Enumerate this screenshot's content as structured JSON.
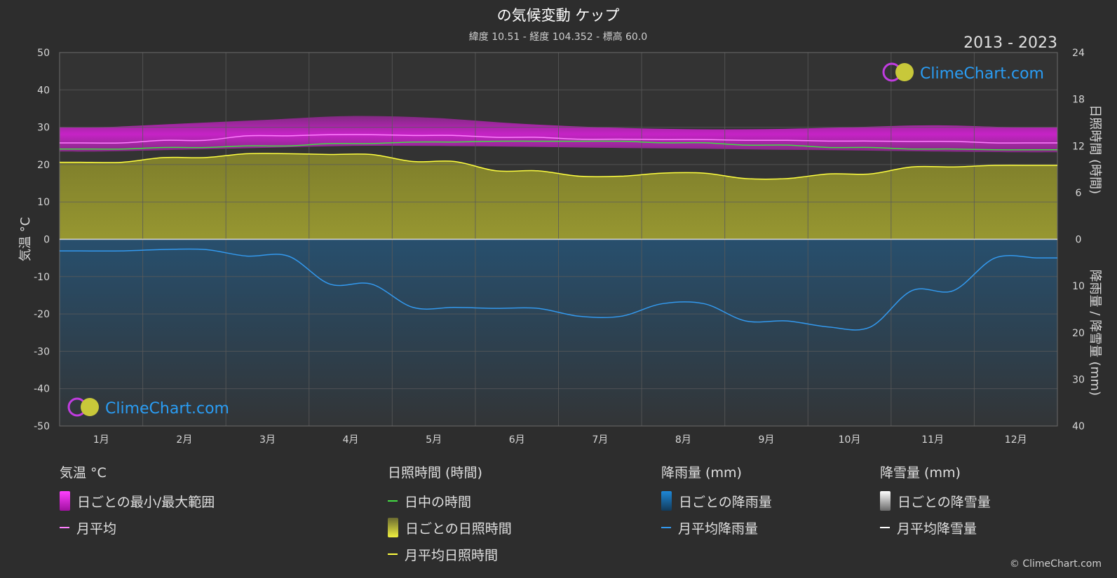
{
  "header": {
    "title": "の気候変動 ケップ",
    "subtitle": "緯度 10.51 - 経度 104.352 - 標高 60.0",
    "period": "2013 - 2023"
  },
  "watermark": {
    "text": "ClimeChart.com"
  },
  "copyright": "© ClimeChart.com",
  "colors": {
    "background": "#2d2d2d",
    "temp_range": "#e020e0",
    "temp_mean": "#ff80ff",
    "daylight": "#44dd44",
    "sunshine_fill": "#a8a830",
    "sunshine_mean": "#ffff40",
    "rain_fill": "#1a6fb0",
    "rain_mean": "#3399ee",
    "snow_mean": "#ffffff",
    "brand_blue": "#2a9df4"
  },
  "chart_data": {
    "type": "line",
    "categories": [
      "1月",
      "2月",
      "3月",
      "4月",
      "5月",
      "6月",
      "7月",
      "8月",
      "9月",
      "10月",
      "11月",
      "12月"
    ],
    "axes": {
      "left": {
        "label": "気温 °C",
        "range": [
          -50,
          50
        ],
        "ticks": [
          50,
          40,
          30,
          20,
          10,
          0,
          -10,
          -20,
          -30,
          -40,
          -50
        ]
      },
      "right_top": {
        "label": "日照時間 (時間)",
        "range": [
          0,
          24
        ],
        "ticks": [
          24,
          18,
          12,
          6,
          0
        ]
      },
      "right_bottom": {
        "label": "降雨量 / 降雪量 (mm)",
        "range": [
          0,
          40
        ],
        "ticks": [
          0,
          10,
          20,
          30,
          40
        ]
      }
    },
    "grid": true,
    "series": [
      {
        "name": "月平均",
        "axis": "left",
        "values": [
          25.8,
          26.5,
          27.7,
          28.0,
          27.8,
          27.3,
          26.8,
          26.7,
          26.5,
          26.3,
          26.2,
          25.8
        ]
      },
      {
        "name": "日中の時間",
        "axis": "right_top",
        "values": [
          11.6,
          11.8,
          12.0,
          12.3,
          12.5,
          12.6,
          12.6,
          12.4,
          12.1,
          11.8,
          11.6,
          11.5
        ]
      },
      {
        "name": "月平均日照時間",
        "axis": "right_top",
        "values": [
          9.9,
          10.5,
          11.0,
          10.9,
          10.0,
          8.8,
          8.1,
          8.5,
          7.8,
          8.4,
          9.3,
          9.5
        ]
      },
      {
        "name": "月平均降雨量",
        "axis": "right_bottom",
        "values": [
          2.5,
          2.2,
          3.6,
          9.6,
          14.6,
          14.8,
          16.5,
          13.8,
          17.5,
          18.8,
          11.0,
          4.0
        ]
      },
      {
        "name": "月平均降雪量",
        "axis": "right_bottom",
        "values": [
          0,
          0,
          0,
          0,
          0,
          0,
          0,
          0,
          0,
          0,
          0,
          0
        ]
      }
    ],
    "temp_range": {
      "name": "日ごとの最小/最大範囲",
      "min": [
        23.5,
        24.0,
        24.5,
        25.0,
        25.0,
        24.8,
        24.5,
        24.3,
        24.0,
        23.8,
        23.5,
        23.3
      ],
      "max": [
        30.0,
        31.0,
        32.0,
        33.0,
        32.5,
        31.0,
        30.0,
        29.5,
        29.5,
        30.0,
        30.5,
        30.0
      ]
    }
  },
  "legend": {
    "groups": [
      {
        "title": "気温 °C",
        "items": [
          {
            "label": "日ごとの最小/最大範囲",
            "kind": "box",
            "color": "#e020e0"
          },
          {
            "label": "月平均",
            "kind": "line",
            "color": "#ff80ff"
          }
        ]
      },
      {
        "title": "日照時間 (時間)",
        "items": [
          {
            "label": "日中の時間",
            "kind": "line",
            "color": "#44dd44"
          },
          {
            "label": "日ごとの日照時間",
            "kind": "box",
            "color": "#d8d840"
          },
          {
            "label": "月平均日照時間",
            "kind": "line",
            "color": "#ffff40"
          }
        ]
      },
      {
        "title": "降雨量 (mm)",
        "items": [
          {
            "label": "日ごとの降雨量",
            "kind": "box",
            "color": "#1e88d8"
          },
          {
            "label": "月平均降雨量",
            "kind": "line",
            "color": "#3399ee"
          }
        ]
      },
      {
        "title": "降雪量 (mm)",
        "items": [
          {
            "label": "日ごとの降雪量",
            "kind": "box",
            "color": "#e8e8e8"
          },
          {
            "label": "月平均降雪量",
            "kind": "line",
            "color": "#ffffff"
          }
        ]
      }
    ]
  }
}
